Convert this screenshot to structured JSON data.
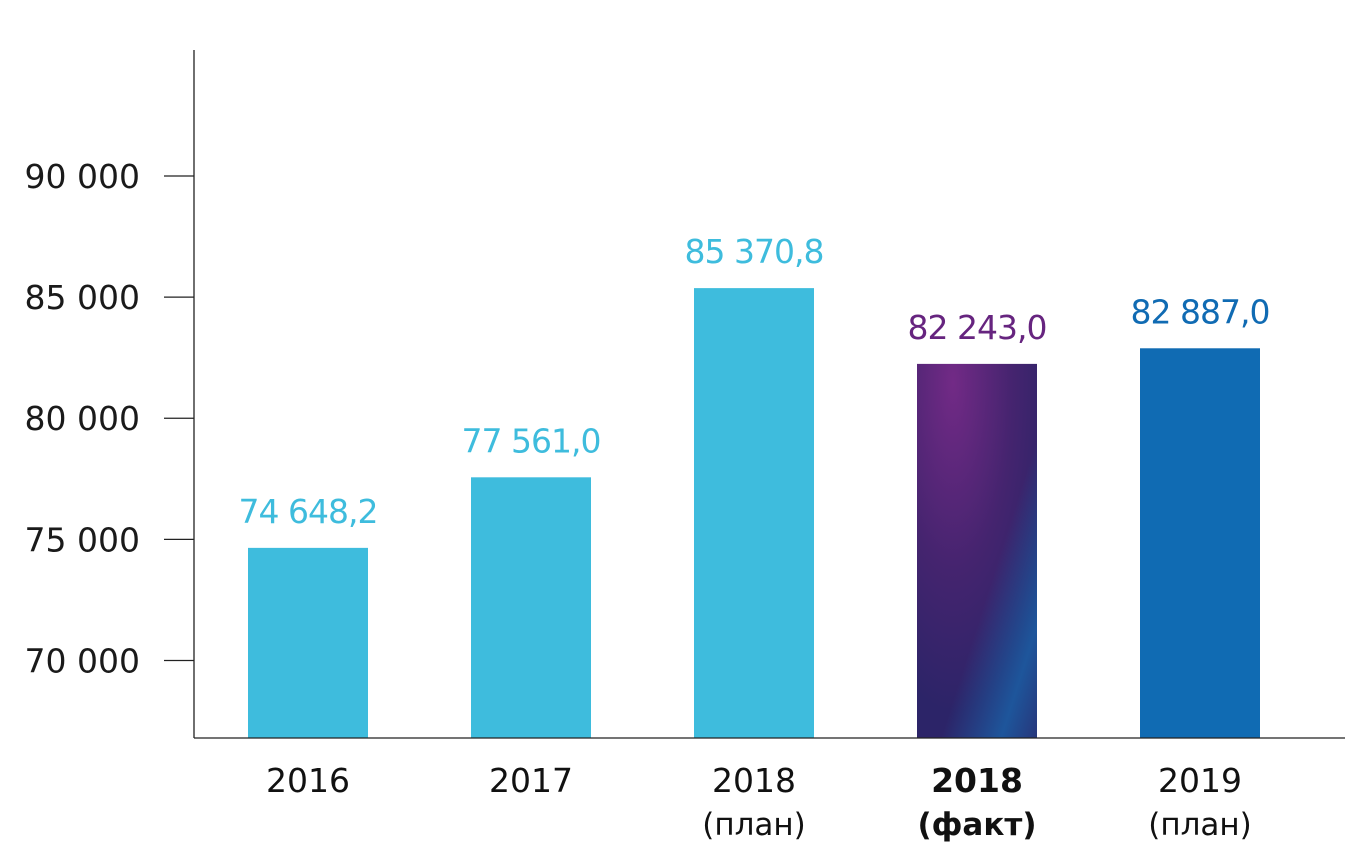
{
  "chart_data": {
    "type": "bar",
    "title": "",
    "xlabel": "",
    "ylabel": "",
    "ylim": [
      66800,
      95200
    ],
    "grid": false,
    "yticks": [
      70000,
      75000,
      80000,
      85000,
      90000
    ],
    "ytick_labels": [
      "70 000",
      "75 000",
      "80 000",
      "85 000",
      "90 000"
    ],
    "categories": [
      {
        "line1": "2016",
        "line2": "",
        "bold": false
      },
      {
        "line1": "2017",
        "line2": "",
        "bold": false
      },
      {
        "line1": "2018",
        "line2": "(план)",
        "bold": false
      },
      {
        "line1": "2018",
        "line2": "(факт)",
        "bold": true
      },
      {
        "line1": "2019",
        "line2": "(план)",
        "bold": false
      }
    ],
    "values": [
      74648.2,
      77561.0,
      85370.8,
      82243.0,
      82887.0
    ],
    "value_labels": [
      "74 648,2",
      "77 561,0",
      "85 370,8",
      "82 243,0",
      "82 887,0"
    ],
    "colors": [
      "#3ebcdd",
      "#3ebcdd",
      "#3ebcdd",
      "gradient",
      "#106bb3"
    ],
    "label_colors": [
      "#3ebcdd",
      "#3ebcdd",
      "#3ebcdd",
      "#66247f",
      "#106bb3"
    ]
  }
}
